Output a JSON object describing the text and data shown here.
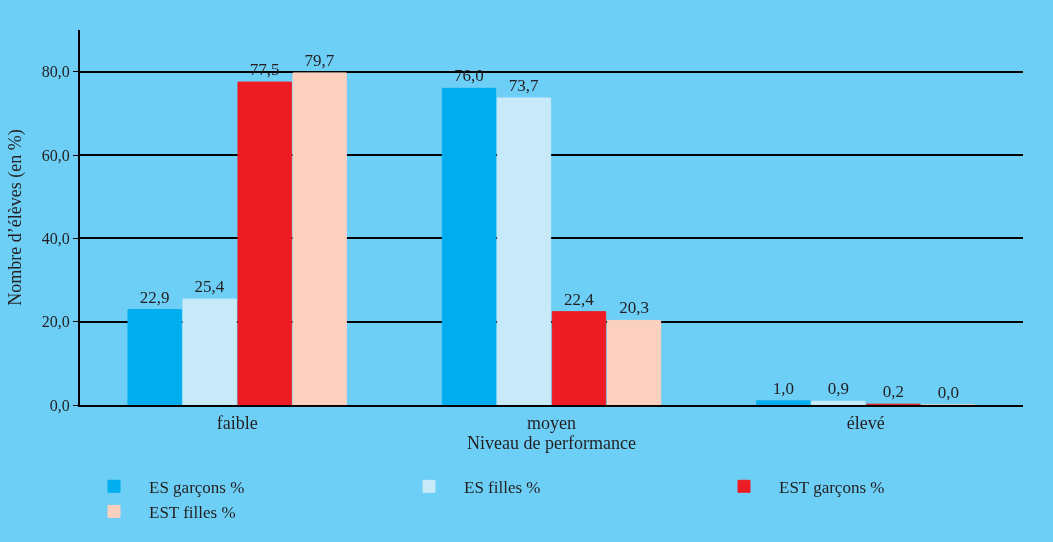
{
  "chart_data": {
    "type": "bar",
    "xlabel": "Niveau de performance",
    "ylabel": "Nombre d’élèves (en %)",
    "categories": [
      "faible",
      "moyen",
      "élevé"
    ],
    "series": [
      {
        "name": "ES garçons %",
        "color": "#00aeef",
        "values": [
          22.9,
          76.0,
          1.0
        ],
        "value_labels": [
          "22,9",
          "76,0",
          "1,0"
        ]
      },
      {
        "name": "ES filles %",
        "color": "#c8e9f8",
        "values": [
          25.4,
          73.7,
          0.9
        ],
        "value_labels": [
          "25,4",
          "73,7",
          "0,9"
        ]
      },
      {
        "name": "EST garçons %",
        "color": "#ed1c24",
        "values": [
          77.5,
          22.4,
          0.2
        ],
        "value_labels": [
          "77,5",
          "22,4",
          "0,2"
        ]
      },
      {
        "name": "EST filles %",
        "color": "#fbd0bf",
        "values": [
          79.7,
          20.3,
          0.0
        ],
        "value_labels": [
          "79,7",
          "20,3",
          "0,0"
        ]
      }
    ],
    "ylim": [
      0,
      90
    ],
    "yticks": [
      {
        "value": 0,
        "label": "0,0"
      },
      {
        "value": 20,
        "label": "20,0"
      },
      {
        "value": 40,
        "label": "40,0"
      },
      {
        "value": 60,
        "label": "60,0"
      },
      {
        "value": 80,
        "label": "80,0"
      }
    ],
    "grid": "y",
    "legend": "bottom"
  }
}
